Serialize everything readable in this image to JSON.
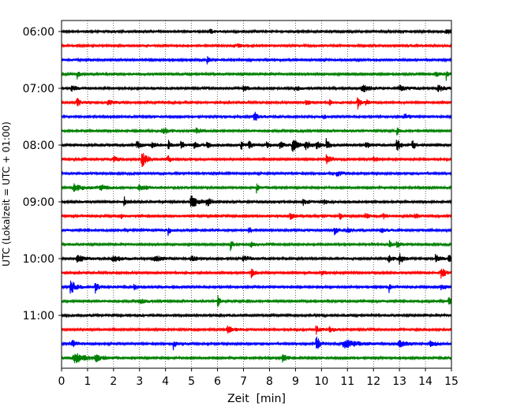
{
  "chart_data": {
    "type": "line",
    "title": "",
    "xlabel": "Zeit  [min]",
    "ylabel": "UTC (Lokalzeit = UTC + 01:00)",
    "xlim": [
      0,
      15
    ],
    "x_ticks": [
      0,
      1,
      2,
      3,
      4,
      5,
      6,
      7,
      8,
      9,
      10,
      11,
      12,
      13,
      14,
      15
    ],
    "x_tick_labels": [
      "0",
      "1",
      "2",
      "3",
      "4",
      "5",
      "6",
      "7",
      "8",
      "9",
      "10",
      "11",
      "12",
      "13",
      "14",
      "15"
    ],
    "grid": "vertical dotted",
    "row_interval_min": 15,
    "trace_colors": [
      "#000000",
      "#ff0000",
      "#0000ff",
      "#008000"
    ],
    "y_tick_labels": [
      "06:00",
      "07:00",
      "08:00",
      "09:00",
      "10:00",
      "11:00"
    ],
    "series": [
      {
        "start": "06:00",
        "color": "#000000",
        "events": [
          [
            5.7,
            0.25,
            0.3
          ],
          [
            14.8,
            0.3,
            0.3
          ]
        ]
      },
      {
        "start": "06:15",
        "color": "#ff0000",
        "events": [
          [
            6.8,
            0.2,
            0.2
          ]
        ]
      },
      {
        "start": "06:30",
        "color": "#0000ff",
        "events": [
          [
            5.6,
            0.7,
            0.1
          ]
        ]
      },
      {
        "start": "06:45",
        "color": "#008000",
        "events": [
          [
            0.6,
            0.6,
            0.1
          ],
          [
            14.4,
            0.5,
            0.2
          ],
          [
            14.8,
            0.7,
            0.1
          ]
        ]
      },
      {
        "start": "07:00",
        "color": "#000000",
        "events": [
          [
            0.4,
            0.35,
            0.3
          ],
          [
            7.0,
            0.3,
            0.3
          ],
          [
            9.0,
            0.35,
            0.3
          ],
          [
            11.6,
            0.45,
            0.5
          ],
          [
            13.0,
            0.3,
            0.5
          ],
          [
            14.5,
            0.45,
            0.3
          ]
        ]
      },
      {
        "start": "07:15",
        "color": "#ff0000",
        "events": [
          [
            0.6,
            0.6,
            0.15
          ],
          [
            1.8,
            0.25,
            0.4
          ],
          [
            9.4,
            0.5,
            0.15
          ],
          [
            10.3,
            0.4,
            0.1
          ],
          [
            11.4,
            0.7,
            0.15
          ],
          [
            11.7,
            0.4,
            0.2
          ]
        ]
      },
      {
        "start": "07:30",
        "color": "#0000ff",
        "events": [
          [
            7.4,
            0.8,
            0.2
          ],
          [
            10.1,
            0.35,
            0.1
          ],
          [
            13.2,
            0.3,
            0.3
          ]
        ]
      },
      {
        "start": "07:45",
        "color": "#008000",
        "events": [
          [
            3.9,
            0.3,
            0.5
          ],
          [
            5.2,
            0.4,
            0.3
          ],
          [
            12.9,
            0.7,
            0.1
          ]
        ]
      },
      {
        "start": "08:00",
        "color": "#000000",
        "events": [
          [
            2.9,
            0.5,
            0.2
          ],
          [
            3.5,
            0.3,
            0.3
          ],
          [
            4.1,
            0.7,
            0.1
          ],
          [
            4.6,
            0.5,
            0.2
          ],
          [
            5.1,
            0.4,
            0.2
          ],
          [
            5.6,
            0.5,
            0.2
          ],
          [
            6.9,
            0.7,
            0.1
          ],
          [
            7.2,
            0.5,
            0.2
          ],
          [
            7.9,
            0.5,
            0.2
          ],
          [
            8.4,
            0.5,
            0.2
          ],
          [
            8.9,
            0.95,
            0.3
          ],
          [
            9.4,
            0.5,
            0.3
          ],
          [
            9.8,
            0.5,
            0.2
          ],
          [
            10.2,
            0.9,
            0.2
          ],
          [
            11.7,
            0.5,
            0.2
          ],
          [
            12.9,
            0.95,
            0.2
          ],
          [
            13.5,
            0.6,
            0.2
          ]
        ]
      },
      {
        "start": "08:15",
        "color": "#ff0000",
        "events": [
          [
            2.0,
            0.5,
            0.2
          ],
          [
            3.1,
            0.9,
            0.3
          ],
          [
            4.1,
            0.4,
            0.2
          ],
          [
            10.2,
            0.6,
            0.3
          ],
          [
            12.0,
            0.4,
            0.2
          ]
        ]
      },
      {
        "start": "08:30",
        "color": "#0000ff",
        "events": [
          [
            10.6,
            0.3,
            0.3
          ]
        ]
      },
      {
        "start": "08:45",
        "color": "#008000",
        "events": [
          [
            0.5,
            0.5,
            0.5
          ],
          [
            1.5,
            0.35,
            0.5
          ],
          [
            3.0,
            0.35,
            0.5
          ],
          [
            7.5,
            0.7,
            0.1
          ]
        ]
      },
      {
        "start": "09:00",
        "color": "#000000",
        "events": [
          [
            2.4,
            0.9,
            0.1
          ],
          [
            5.0,
            0.8,
            0.4
          ],
          [
            5.6,
            0.5,
            0.3
          ],
          [
            9.3,
            0.35,
            0.3
          ],
          [
            10.1,
            0.3,
            0.2
          ]
        ]
      },
      {
        "start": "09:15",
        "color": "#ff0000",
        "events": [
          [
            2.3,
            0.3,
            0.2
          ],
          [
            8.8,
            0.4,
            0.2
          ],
          [
            10.7,
            0.4,
            0.15
          ],
          [
            11.7,
            0.35,
            0.15
          ],
          [
            12.4,
            0.35,
            0.15
          ],
          [
            13.6,
            0.35,
            0.2
          ]
        ]
      },
      {
        "start": "09:30",
        "color": "#0000ff",
        "events": [
          [
            4.1,
            0.7,
            0.1
          ],
          [
            7.2,
            0.4,
            0.2
          ],
          [
            10.5,
            0.5,
            0.2
          ],
          [
            11.0,
            0.3,
            0.3
          ],
          [
            12.3,
            0.3,
            0.3
          ]
        ]
      },
      {
        "start": "09:45",
        "color": "#008000",
        "events": [
          [
            6.5,
            0.85,
            0.1
          ],
          [
            7.3,
            0.3,
            0.3
          ],
          [
            12.6,
            0.6,
            0.1
          ],
          [
            12.9,
            0.3,
            0.2
          ]
        ]
      },
      {
        "start": "10:00",
        "color": "#000000",
        "events": [
          [
            0.6,
            0.4,
            0.5
          ],
          [
            2.0,
            0.35,
            0.5
          ],
          [
            3.6,
            0.35,
            0.5
          ],
          [
            5.0,
            0.4,
            0.3
          ],
          [
            7.0,
            0.3,
            0.4
          ],
          [
            12.6,
            0.4,
            0.3
          ],
          [
            13.0,
            0.75,
            0.2
          ],
          [
            14.4,
            0.65,
            0.2
          ],
          [
            14.9,
            0.4,
            0.3
          ]
        ]
      },
      {
        "start": "10:15",
        "color": "#ff0000",
        "events": [
          [
            7.3,
            0.7,
            0.15
          ],
          [
            10.0,
            0.3,
            0.2
          ],
          [
            14.6,
            0.9,
            0.2
          ]
        ]
      },
      {
        "start": "10:30",
        "color": "#0000ff",
        "events": [
          [
            0.35,
            0.9,
            0.3
          ],
          [
            1.3,
            0.85,
            0.15
          ],
          [
            2.8,
            0.3,
            0.3
          ],
          [
            12.6,
            0.65,
            0.1
          ],
          [
            14.6,
            0.3,
            0.3
          ]
        ]
      },
      {
        "start": "10:45",
        "color": "#008000",
        "events": [
          [
            3.0,
            0.35,
            0.3
          ],
          [
            6.0,
            0.9,
            0.1
          ],
          [
            14.9,
            0.6,
            0.2
          ]
        ]
      },
      {
        "start": "11:00",
        "color": "#000000",
        "events": []
      },
      {
        "start": "11:15",
        "color": "#ff0000",
        "events": [
          [
            6.4,
            0.4,
            0.4
          ],
          [
            9.8,
            0.6,
            0.15
          ],
          [
            10.3,
            0.4,
            0.2
          ]
        ]
      },
      {
        "start": "11:30",
        "color": "#0000ff",
        "events": [
          [
            0.4,
            0.5,
            0.3
          ],
          [
            4.3,
            0.65,
            0.1
          ],
          [
            9.8,
            1.4,
            0.15
          ],
          [
            10.9,
            0.6,
            0.8
          ],
          [
            13.0,
            0.4,
            0.5
          ],
          [
            14.2,
            0.35,
            0.4
          ]
        ]
      },
      {
        "start": "11:45",
        "color": "#008000",
        "events": [
          [
            0.5,
            0.6,
            0.8
          ],
          [
            1.3,
            0.4,
            0.4
          ],
          [
            8.5,
            0.75,
            0.2
          ]
        ]
      }
    ]
  }
}
